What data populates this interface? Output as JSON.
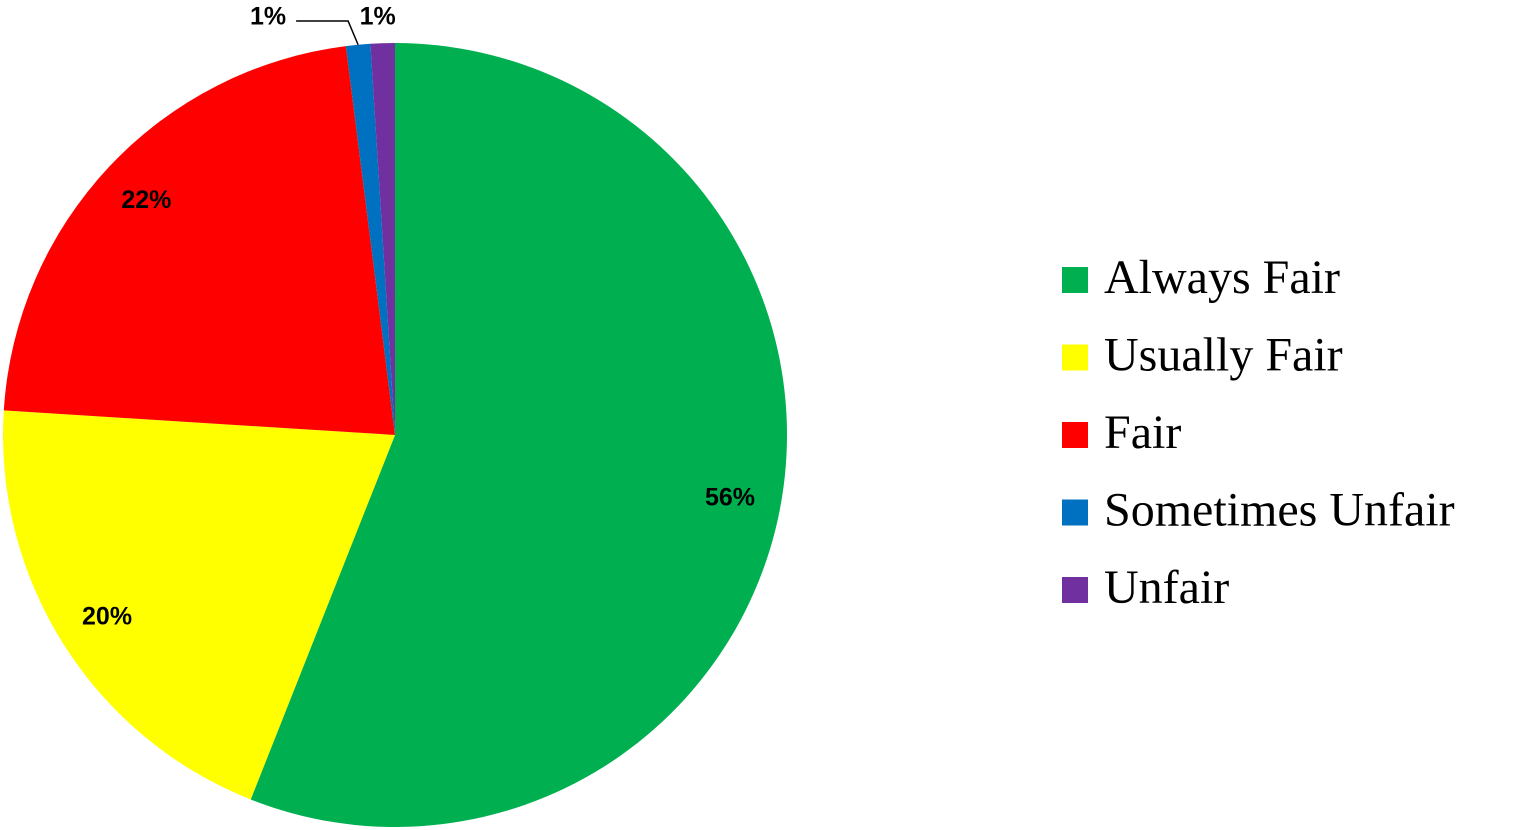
{
  "chart_data": {
    "type": "pie",
    "categories": [
      "Always Fair",
      "Usually Fair",
      "Fair",
      "Sometimes Unfair",
      "Unfair"
    ],
    "values": [
      56,
      20,
      22,
      1,
      1
    ],
    "value_labels": [
      "56%",
      "20%",
      "22%",
      "1%",
      "1%"
    ],
    "colors": [
      "#00b050",
      "#ffff00",
      "#ff0000",
      "#0070c0",
      "#7030a0"
    ],
    "legend": "right"
  }
}
